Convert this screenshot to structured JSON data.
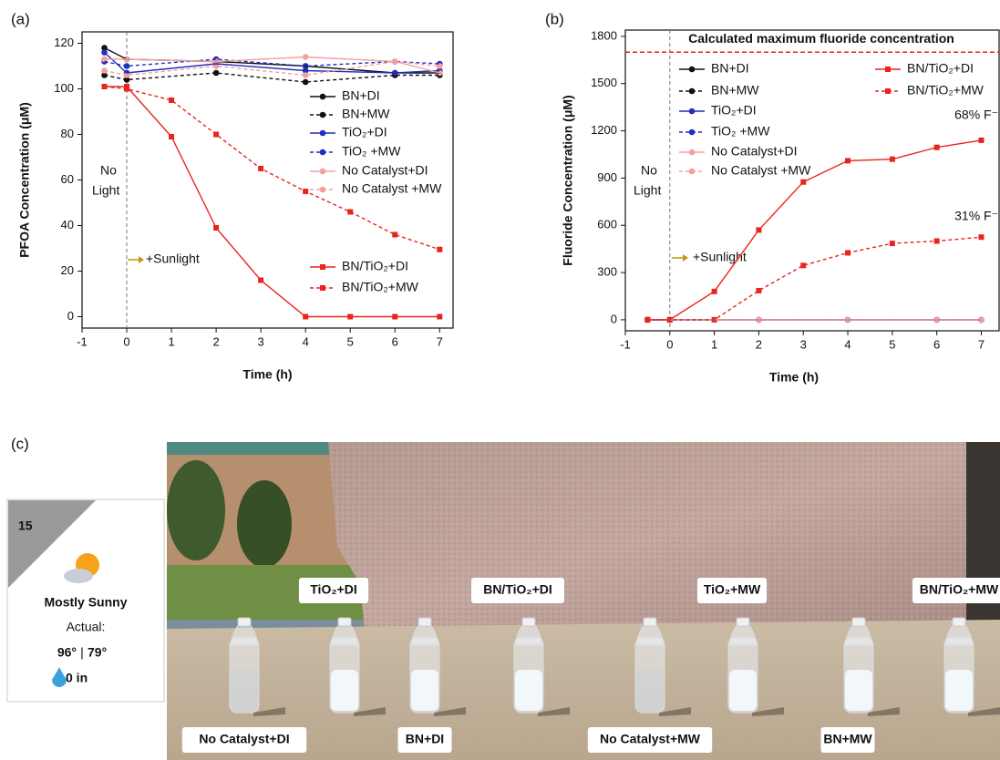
{
  "chart_data": [
    {
      "type": "line",
      "panel": "(a)",
      "xlabel": "Time (h)",
      "ylabel": "PFOA Concentration (μM)",
      "xlim": [
        -1,
        7.3
      ],
      "ylim": [
        -5,
        125
      ],
      "xticks": [
        -1,
        0,
        1,
        2,
        3,
        4,
        5,
        6,
        7
      ],
      "yticks": [
        0,
        20,
        40,
        60,
        80,
        100,
        120
      ],
      "vline": 0,
      "annotations": [
        "No",
        "Light",
        "+Sunlight"
      ],
      "series": [
        {
          "name": "BN+DI",
          "color": "#111111",
          "dash": false,
          "marker": "circle",
          "x": [
            -0.5,
            0,
            2,
            4,
            6,
            7
          ],
          "values": [
            118,
            113,
            112,
            110,
            107,
            107
          ]
        },
        {
          "name": "BN+MW",
          "color": "#111111",
          "dash": true,
          "marker": "circle",
          "x": [
            -0.5,
            0,
            2,
            4,
            6,
            7
          ],
          "values": [
            106,
            104,
            107,
            103,
            106,
            106
          ]
        },
        {
          "name": "TiO₂+DI",
          "color": "#1f2fbf",
          "dash": false,
          "marker": "circle",
          "x": [
            -0.5,
            0,
            2,
            4,
            6,
            7
          ],
          "values": [
            116,
            107,
            111,
            108,
            107,
            108
          ]
        },
        {
          "name": "TiO₂ +MW",
          "color": "#1f2fbf",
          "dash": true,
          "marker": "circle",
          "x": [
            -0.5,
            0,
            2,
            4,
            6,
            7
          ],
          "values": [
            112,
            110,
            113,
            110,
            112,
            111
          ]
        },
        {
          "name": "No Catalyst+DI",
          "color": "#f4a0a0",
          "dash": false,
          "marker": "circle",
          "x": [
            -0.5,
            0,
            2,
            4,
            6,
            7
          ],
          "values": [
            113,
            113,
            112,
            114,
            112,
            107
          ]
        },
        {
          "name": "No Catalyst +MW",
          "color": "#f4a0a0",
          "dash": true,
          "marker": "circle",
          "x": [
            -0.5,
            0,
            2,
            4,
            6,
            7
          ],
          "values": [
            108,
            106,
            110,
            106,
            112,
            110
          ]
        },
        {
          "name": "BN/TiO₂+DI",
          "color": "#e8241d",
          "dash": false,
          "marker": "square",
          "x": [
            -0.5,
            0,
            1,
            2,
            3,
            4,
            5,
            6,
            7
          ],
          "values": [
            101,
            101,
            79,
            39,
            16,
            0,
            0,
            0,
            0
          ]
        },
        {
          "name": "BN/TiO₂+MW",
          "color": "#e8241d",
          "dash": true,
          "marker": "square",
          "x": [
            -0.5,
            0,
            1,
            2,
            3,
            4,
            5,
            6,
            7
          ],
          "values": [
            101,
            100,
            95,
            80,
            65,
            55,
            46,
            36,
            29.5
          ]
        }
      ]
    },
    {
      "type": "line",
      "panel": "(b)",
      "xlabel": "Time (h)",
      "ylabel": "Fluoride Concentration (μM)",
      "xlim": [
        -1,
        7.4
      ],
      "ylim": [
        -70,
        1840
      ],
      "xticks": [
        -1,
        0,
        1,
        2,
        3,
        4,
        5,
        6,
        7
      ],
      "yticks": [
        0,
        300,
        600,
        900,
        1200,
        1500,
        1800
      ],
      "vline": 0,
      "annotations": [
        "No",
        "Light",
        "+Sunlight",
        "68% F⁻",
        "31% F⁻"
      ],
      "hline": {
        "value": 1700,
        "label": "Calculated maximum  fluoride concentration",
        "color": "#e8241d"
      },
      "series": [
        {
          "name": "BN+DI",
          "color": "#111111",
          "dash": false,
          "marker": "circle",
          "x": [
            -0.5,
            0,
            2,
            4,
            6,
            7
          ],
          "values": [
            0,
            0,
            0,
            0,
            0,
            0
          ]
        },
        {
          "name": "BN+MW",
          "color": "#111111",
          "dash": true,
          "marker": "circle",
          "x": [
            -0.5,
            0,
            2,
            4,
            6,
            7
          ],
          "values": [
            0,
            0,
            0,
            0,
            0,
            0
          ]
        },
        {
          "name": "TiO₂+DI",
          "color": "#1f2fbf",
          "dash": false,
          "marker": "circle",
          "x": [
            -0.5,
            0,
            2,
            4,
            6,
            7
          ],
          "values": [
            0,
            0,
            0,
            0,
            0,
            0
          ]
        },
        {
          "name": "TiO₂ +MW",
          "color": "#1f2fbf",
          "dash": true,
          "marker": "circle",
          "x": [
            -0.5,
            0,
            2,
            4,
            6,
            7
          ],
          "values": [
            0,
            0,
            0,
            0,
            0,
            0
          ]
        },
        {
          "name": "No Catalyst+DI",
          "color": "#f4a0a0",
          "dash": false,
          "marker": "circle",
          "x": [
            -0.5,
            0,
            2,
            4,
            6,
            7
          ],
          "values": [
            0,
            0,
            0,
            0,
            0,
            0
          ]
        },
        {
          "name": "No Catalyst +MW",
          "color": "#f4a0a0",
          "dash": true,
          "marker": "circle",
          "x": [
            -0.5,
            0,
            2,
            4,
            6,
            7
          ],
          "values": [
            0,
            0,
            0,
            0,
            0,
            0
          ]
        },
        {
          "name": "BN/TiO₂+DI",
          "color": "#e8241d",
          "dash": false,
          "marker": "square",
          "x": [
            -0.5,
            0,
            1,
            2,
            3,
            4,
            5,
            6,
            7
          ],
          "values": [
            0,
            0,
            180,
            570,
            875,
            1010,
            1020,
            1095,
            1140
          ]
        },
        {
          "name": "BN/TiO₂+MW",
          "color": "#e8241d",
          "dash": true,
          "marker": "square",
          "x": [
            -0.5,
            0,
            1,
            2,
            3,
            4,
            5,
            6,
            7
          ],
          "values": [
            0,
            0,
            0,
            185,
            345,
            425,
            485,
            500,
            525
          ]
        }
      ]
    }
  ],
  "panel_c": {
    "label": "(c)",
    "weather": {
      "day": "15",
      "condition": "Mostly Sunny",
      "actual": "Actual:",
      "high": "96°",
      "separator": "|",
      "low": "79°",
      "rain": "0 in"
    },
    "bottle_labels": [
      "No Catalyst+DI",
      "TiO₂+DI",
      "BN+DI",
      "BN/TiO₂+DI",
      "No Catalyst+MW",
      "TiO₂+MW",
      "BN+MW",
      "BN/TiO₂+MW"
    ]
  }
}
